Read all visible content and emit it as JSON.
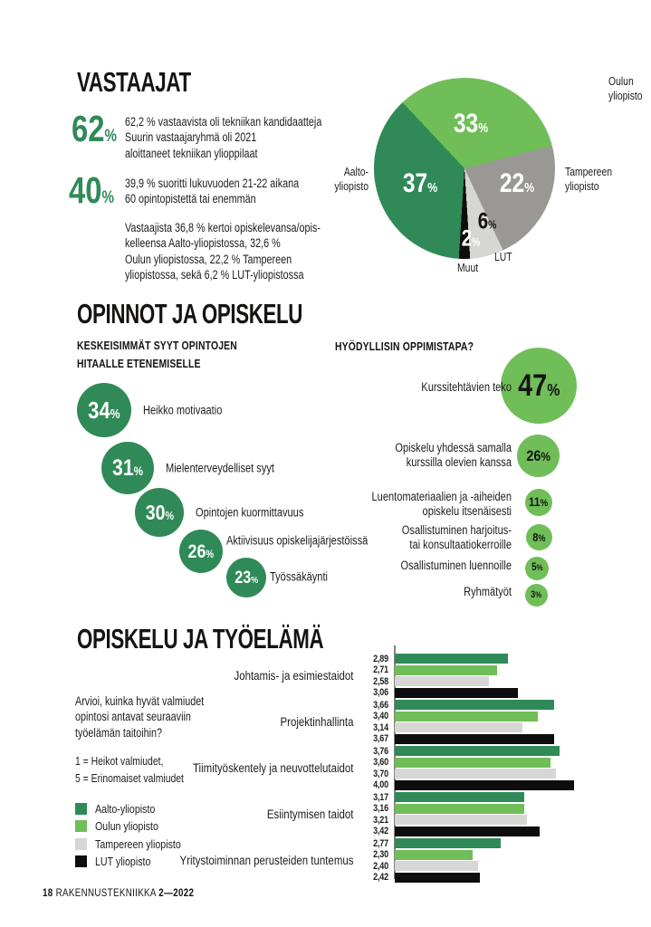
{
  "symbols": {
    "percent": "%"
  },
  "palette": {
    "dark_green": "#2F8A57",
    "light_green": "#6FBE58",
    "mid_gray": "#9A9895",
    "light_gray": "#D6D6D4",
    "black": "#0D0D0D",
    "text": "#1D1D1B"
  },
  "vastaajat": {
    "title": "VASTAAJAT",
    "stats": [
      {
        "value": "62",
        "lines": [
          "62,2  % vastaavista oli tekniikan kandidaatteja",
          "Suurin vastaajaryhmä oli 2021",
          "aloittaneet tekniikan ylioppilaat"
        ]
      },
      {
        "value": "40",
        "lines": [
          "39,9 % suoritti lukuvuoden 21-22 aikana",
          "60 opintopistettä tai enemmän"
        ]
      }
    ],
    "paragraph": [
      "Vastaajista 36,8 % kertoi opiskelevansa/opis-",
      "kelleensa Aalto-yliopistossa, 32,6 %",
      "Oulun yliopistossa,  22,2 % Tampereen",
      "yliopistossa, sekä 6,2 % LUT-yliopistossa"
    ]
  },
  "opinnot": {
    "title": "OPINNOT JA OPISKELU",
    "left_heading": [
      "KESKEISIMMÄT SYYT OPINTOJEN",
      "HITAALLE ETENEMISELLE"
    ],
    "right_heading": "HYÖDYLLISIN OPPIMISTAPA?"
  },
  "tyoelama": {
    "title": "OPISKELU JA TYÖELÄMÄ",
    "intro": [
      "Arvioi, kuinka hyvät valmiudet",
      "opintosi antavat seuraaviin",
      "työelämän taitoihin?"
    ],
    "scale": [
      "1 = Heikot valmiudet,",
      "5 = Erinomaiset valmiudet"
    ]
  },
  "footer": {
    "page": "18",
    "magazine": "RAKENNUSTEKNIIKKA",
    "issue": "2—2022"
  },
  "chart_data": [
    {
      "id": "respondents-by-university",
      "type": "pie",
      "unit": "%",
      "start_angle": -43.2,
      "slices": [
        {
          "label": "Oulun yliopisto",
          "value": 33,
          "color": "#6FBE58",
          "label_lines": [
            "Oulun",
            "yliopisto"
          ]
        },
        {
          "label": "Tampereen yliopisto",
          "value": 22,
          "color": "#9A9895",
          "label_lines": [
            "Tampereen",
            "yliopisto"
          ]
        },
        {
          "label": "LUT",
          "value": 6,
          "color": "#D6D6D4",
          "label_lines": [
            "LUT"
          ]
        },
        {
          "label": "Muut",
          "value": 2,
          "color": "#0D0D0D",
          "label_lines": [
            "Muut"
          ]
        },
        {
          "label": "Aalto-yliopisto",
          "value": 37,
          "color": "#2F8A57",
          "label_lines": [
            "Aalto-",
            "yliopisto"
          ]
        }
      ]
    },
    {
      "id": "reasons-for-slow-progress",
      "type": "bubble",
      "unit": "%",
      "items": [
        {
          "value": 34,
          "label": "Heikko motivaatio"
        },
        {
          "value": 31,
          "label": "Mielenterveydelliset syyt"
        },
        {
          "value": 30,
          "label": "Opintojen kuormittavuus"
        },
        {
          "value": 26,
          "label": "Aktiivisuus opiskelijajärjestöissä"
        },
        {
          "value": 23,
          "label": "Työssäkäynti"
        }
      ]
    },
    {
      "id": "most-useful-learning-method",
      "type": "bubble",
      "unit": "%",
      "items": [
        {
          "value": 47,
          "label_lines": [
            "Kurssitehtävien teko"
          ]
        },
        {
          "value": 26,
          "label_lines": [
            "Opiskelu yhdessä samalla",
            "kurssilla olevien kanssa"
          ]
        },
        {
          "value": 11,
          "label_lines": [
            "Luentomateriaalien ja -aiheiden",
            "opiskelu itsenäisesti"
          ]
        },
        {
          "value": 8,
          "label_lines": [
            "Osallistuminen harjoitus-",
            "tai konsultaatiokerroille"
          ]
        },
        {
          "value": 5,
          "label_lines": [
            "Osallistuminen luennoille"
          ]
        },
        {
          "value": 3,
          "label_lines": [
            "Ryhmätyöt"
          ]
        }
      ]
    },
    {
      "id": "working-life-skills",
      "type": "bar",
      "orientation": "horizontal",
      "value_min": 1,
      "value_max": 5,
      "decimal_separator": ",",
      "categories": [
        "Johtamis- ja esimiestaidot",
        "Projektinhallinta",
        "Tiimityöskentely ja neuvottelutaidot",
        "Esiintymisen taidot",
        "Yritystoiminnan perusteiden tuntemus"
      ],
      "series": [
        {
          "name": "Aalto-yliopisto",
          "color": "#2F8A57",
          "values": [
            2.89,
            3.66,
            3.76,
            3.17,
            2.77
          ]
        },
        {
          "name": "Oulun yliopisto",
          "color": "#6FBE58",
          "values": [
            2.71,
            3.4,
            3.6,
            3.16,
            2.3
          ]
        },
        {
          "name": "Tampereen yliopisto",
          "color": "#D6D6D4",
          "values": [
            2.58,
            3.14,
            3.7,
            3.21,
            2.4
          ]
        },
        {
          "name": "LUT yliopisto",
          "color": "#0D0D0D",
          "values": [
            3.06,
            3.67,
            4.0,
            3.42,
            2.42
          ]
        }
      ]
    }
  ]
}
